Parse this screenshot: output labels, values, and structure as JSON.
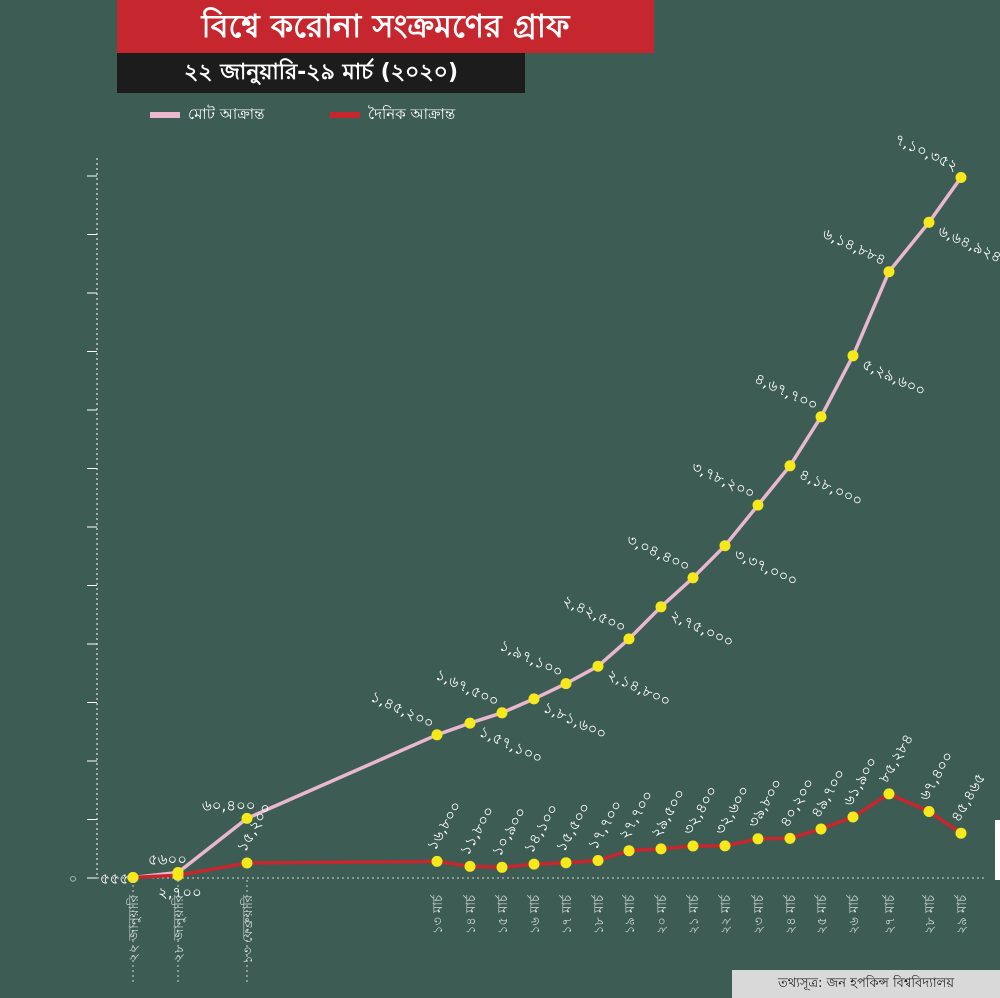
{
  "header": {
    "title": "বিশ্বে করোনা সংক্রমণের গ্রাফ",
    "subtitle": "২২ জানুয়ারি-২৯ মার্চ (২০২০)"
  },
  "legend": [
    {
      "label": "মোট আক্রান্ত",
      "color": "#e9b8cf"
    },
    {
      "label": "দৈনিক আক্রান্ত",
      "color": "#c6262d"
    }
  ],
  "source": "তথ্যসূত্র: জন হপকিন্স বিশ্ববিদ্যালয়",
  "chart_data": {
    "type": "line",
    "y_axis_tick": "০",
    "ylim": [
      0,
      720000
    ],
    "grid": false,
    "legend_position": "top-left",
    "categories": [
      "২২ জানুয়ারি",
      "২৮ জানুয়ারি",
      "১৩ ফেব্রুয়ারি",
      "১৩ মার্চ",
      "১৪ মার্চ",
      "১৫ মার্চ",
      "১৬ মার্চ",
      "১৭ মার্চ",
      "১৮ মার্চ",
      "১৯ মার্চ",
      "২০ মার্চ",
      "২১ মার্চ",
      "২২ মার্চ",
      "২৩ মার্চ",
      "২৪ মার্চ",
      "২৫ মার্চ",
      "২৬ মার্চ",
      "২৭ মার্চ",
      "২৮ মার্চ",
      "২৯ মার্চ"
    ],
    "series": [
      {
        "name": "মোট আক্রান্ত",
        "color": "#e9b8cf",
        "values": [
          555,
          5600,
          60400,
          145200,
          157100,
          167500,
          181600,
          197100,
          214800,
          242500,
          275000,
          304400,
          337000,
          378200,
          418000,
          467700,
          529600,
          614884,
          664924,
          710352
        ],
        "labels": [
          "৫৫৫",
          "৫৬০০",
          "৬০,৪০০",
          "১,৪৫,২০০",
          "১,৫৭,১০০",
          "১,৬৭,৫০০",
          "১,৮১,৬০০",
          "১,৯৭,১০০",
          "২,১৪,৮০০",
          "২,৪২,৫০০",
          "২,৭৫,০০০",
          "৩,০৪,৪০০",
          "৩,৩৭,০০০",
          "৩,৭৮,২০০",
          "৪,১৮,০০০",
          "৪,৬৭,৭০০",
          "৫,২৯,৬০০",
          "৬,১৪,৮৮৪",
          "৬,৬৪,৯২৪",
          "৭,১০,৩৫২"
        ]
      },
      {
        "name": "দৈনিক আক্রান্ত",
        "color": "#c6262d",
        "values": [
          555,
          2700,
          15200,
          16800,
          11800,
          10900,
          14100,
          15500,
          17700,
          27700,
          29500,
          32400,
          32600,
          39800,
          40200,
          49700,
          61900,
          85284,
          67400,
          45465
        ],
        "labels": [
          "৫৫৫",
          "২,৭০০",
          "১৫,২০০",
          "১৬,৮০০",
          "১১,৮০০",
          "১০,৯০০",
          "১৪,১০০",
          "১৫,৫০০",
          "১৭,৭০০",
          "২৭,৭০০",
          "২৯,৫০০",
          "৩২,৪০০",
          "৩২,৬০০",
          "৩৯,৮০০",
          "৪০,২০০",
          "৪৯,৭০০",
          "৬১,৯০০",
          "৮৫,২৮৪",
          "৬৭,৪০০",
          "৪৫,৪৬৫"
        ]
      }
    ]
  }
}
